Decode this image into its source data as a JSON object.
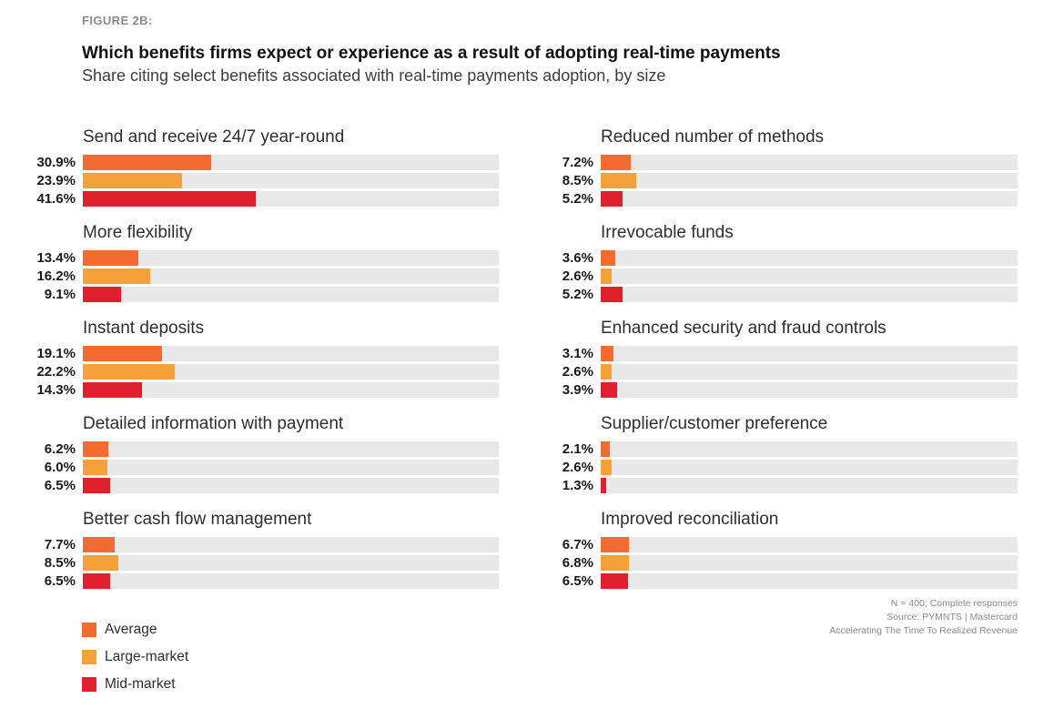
{
  "figure": {
    "label": "FIGURE 2B:",
    "title": "Which benefits firms expect or experience as a result of adopting real-time payments",
    "subtitle": "Share citing select benefits associated with real-time payments adoption, by size"
  },
  "chart_data": {
    "type": "bar",
    "orientation": "horizontal",
    "xlim": [
      0,
      100
    ],
    "unit": "%",
    "grid": false,
    "legend_position": "bottom-left",
    "series_names": [
      "Average",
      "Large-market",
      "Mid-market"
    ],
    "series_colors": [
      "#F26B30",
      "#F5A139",
      "#E01F2F"
    ],
    "track_color": "#E8E8E8",
    "groups": [
      {
        "title": "Send and receive 24/7 year-round",
        "column": "left",
        "values": [
          30.9,
          23.9,
          41.6
        ],
        "labels": [
          "30.9%",
          "23.9%",
          "41.6%"
        ]
      },
      {
        "title": "More flexibility",
        "column": "left",
        "values": [
          13.4,
          16.2,
          9.1
        ],
        "labels": [
          "13.4%",
          "16.2%",
          "9.1%"
        ]
      },
      {
        "title": "Instant deposits",
        "column": "left",
        "values": [
          19.1,
          22.2,
          14.3
        ],
        "labels": [
          "19.1%",
          "22.2%",
          "14.3%"
        ]
      },
      {
        "title": "Detailed information with payment",
        "column": "left",
        "values": [
          6.2,
          6.0,
          6.5
        ],
        "labels": [
          "6.2%",
          "6.0%",
          "6.5%"
        ]
      },
      {
        "title": "Better cash flow management",
        "column": "left",
        "values": [
          7.7,
          8.5,
          6.5
        ],
        "labels": [
          "7.7%",
          "8.5%",
          "6.5%"
        ]
      },
      {
        "title": "Reduced number of methods",
        "column": "right",
        "values": [
          7.2,
          8.5,
          5.2
        ],
        "labels": [
          "7.2%",
          "8.5%",
          "5.2%"
        ]
      },
      {
        "title": "Irrevocable funds",
        "column": "right",
        "values": [
          3.6,
          2.6,
          5.2
        ],
        "labels": [
          "3.6%",
          "2.6%",
          "5.2%"
        ]
      },
      {
        "title": "Enhanced security and fraud controls",
        "column": "right",
        "values": [
          3.1,
          2.6,
          3.9
        ],
        "labels": [
          "3.1%",
          "2.6%",
          "3.9%"
        ]
      },
      {
        "title": "Supplier/customer preference",
        "column": "right",
        "values": [
          2.1,
          2.6,
          1.3
        ],
        "labels": [
          "2.1%",
          "2.6%",
          "1.3%"
        ]
      },
      {
        "title": "Improved reconciliation",
        "column": "right",
        "values": [
          6.7,
          6.8,
          6.5
        ],
        "labels": [
          "6.7%",
          "6.8%",
          "6.5%"
        ]
      }
    ]
  },
  "legend": {
    "items": [
      {
        "label": "Average",
        "color": "#F26B30"
      },
      {
        "label": "Large-market",
        "color": "#F5A139"
      },
      {
        "label": "Mid-market",
        "color": "#E01F2F"
      }
    ]
  },
  "footer": {
    "lines": [
      "N = 400; Complete responses",
      "Source: PYMNTS | Mastercard",
      "Accelerating The Time To Realized Revenue"
    ]
  }
}
